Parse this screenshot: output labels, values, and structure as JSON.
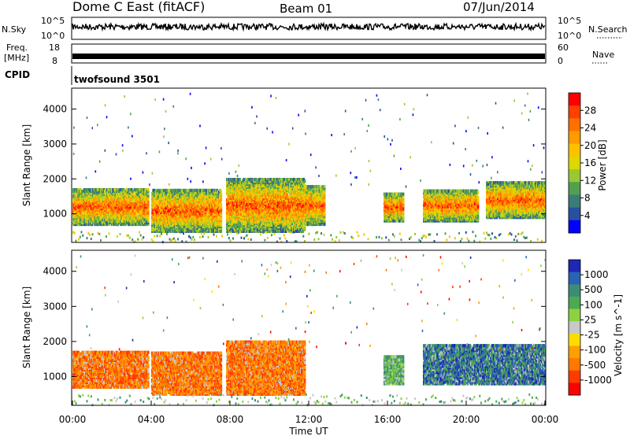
{
  "header": {
    "station": "Dome C East (fitACF)",
    "beam": "Beam 01",
    "date": "07/Jun/2014"
  },
  "summary": {
    "nsky_label": "N.Sky",
    "nsearch_label": "N.Search",
    "nsky_ticks": [
      "10^5",
      "10^0"
    ],
    "nsearch_ticks": [
      "10^5",
      "10^0"
    ],
    "freq_label": "Freq.",
    "freq_unit": "[MHz]",
    "freq_ticks": [
      "18",
      "8"
    ],
    "nave_label": "Nave",
    "nave_ticks": [
      "60",
      "0"
    ],
    "cpid_label": "CPID",
    "cpid_text": "twofsound 3501"
  },
  "chart_data": [
    {
      "type": "heatmap",
      "name": "power",
      "ylabel": "Slant Range [km]",
      "yticks": [
        1000,
        2000,
        3000,
        4000
      ],
      "ylim": [
        180,
        4600
      ],
      "xlim": [
        0,
        24
      ],
      "colorbar": {
        "label": "Power [dB]",
        "ticks": [
          "28",
          "24",
          "20",
          "16",
          "12",
          "8",
          "4"
        ],
        "colors": [
          "#ff0000",
          "#ff4000",
          "#ff7000",
          "#ff9a00",
          "#ffc000",
          "#dcd800",
          "#9ac832",
          "#50a050",
          "#3c7c78",
          "#2850a0",
          "#0000ff"
        ]
      },
      "echo_regions": [
        {
          "t0": 0.0,
          "t1": 3.8,
          "r0": 700,
          "r1": 1700
        },
        {
          "t0": 4.0,
          "t1": 7.5,
          "r0": 500,
          "r1": 1700
        },
        {
          "t0": 7.8,
          "t1": 11.8,
          "r0": 500,
          "r1": 2000
        },
        {
          "t0": 11.8,
          "t1": 12.8,
          "r0": 700,
          "r1": 1800
        },
        {
          "t0": 15.8,
          "t1": 16.8,
          "r0": 800,
          "r1": 1600
        },
        {
          "t0": 17.8,
          "t1": 20.6,
          "r0": 800,
          "r1": 1700
        },
        {
          "t0": 21.0,
          "t1": 24.0,
          "r0": 900,
          "r1": 1900
        }
      ]
    },
    {
      "type": "heatmap",
      "name": "velocity",
      "ylabel": "Slant Range [km]",
      "xlabel": "Time UT",
      "xticks": [
        "00:00",
        "04:00",
        "08:00",
        "12:00",
        "16:00",
        "20:00",
        "00:00"
      ],
      "yticks": [
        1000,
        2000,
        3000,
        4000
      ],
      "ylim": [
        180,
        4600
      ],
      "xlim": [
        0,
        24
      ],
      "colorbar": {
        "label": "Velocity [m s^-1]",
        "ticks": [
          "1000",
          "500",
          "100",
          "25",
          "-25",
          "-100",
          "-500",
          "-1000"
        ],
        "colors": [
          "#1e28b4",
          "#2a62b4",
          "#3c8c78",
          "#4caa50",
          "#8cd240",
          "#c8c8c8",
          "#ffdc00",
          "#ffa000",
          "#ff7800",
          "#ff3c00",
          "#ff0000"
        ]
      },
      "echo_regions": [
        {
          "t0": 0.0,
          "t1": 3.8,
          "r0": 700,
          "r1": 1700,
          "dominant": "orange"
        },
        {
          "t0": 4.0,
          "t1": 7.5,
          "r0": 500,
          "r1": 1700,
          "dominant": "orange"
        },
        {
          "t0": 7.8,
          "t1": 11.8,
          "r0": 500,
          "r1": 2000,
          "dominant": "orange"
        },
        {
          "t0": 15.8,
          "t1": 16.8,
          "r0": 800,
          "r1": 1600,
          "dominant": "green"
        },
        {
          "t0": 17.8,
          "t1": 24.0,
          "r0": 800,
          "r1": 1900,
          "dominant": "blue-green"
        }
      ]
    }
  ]
}
